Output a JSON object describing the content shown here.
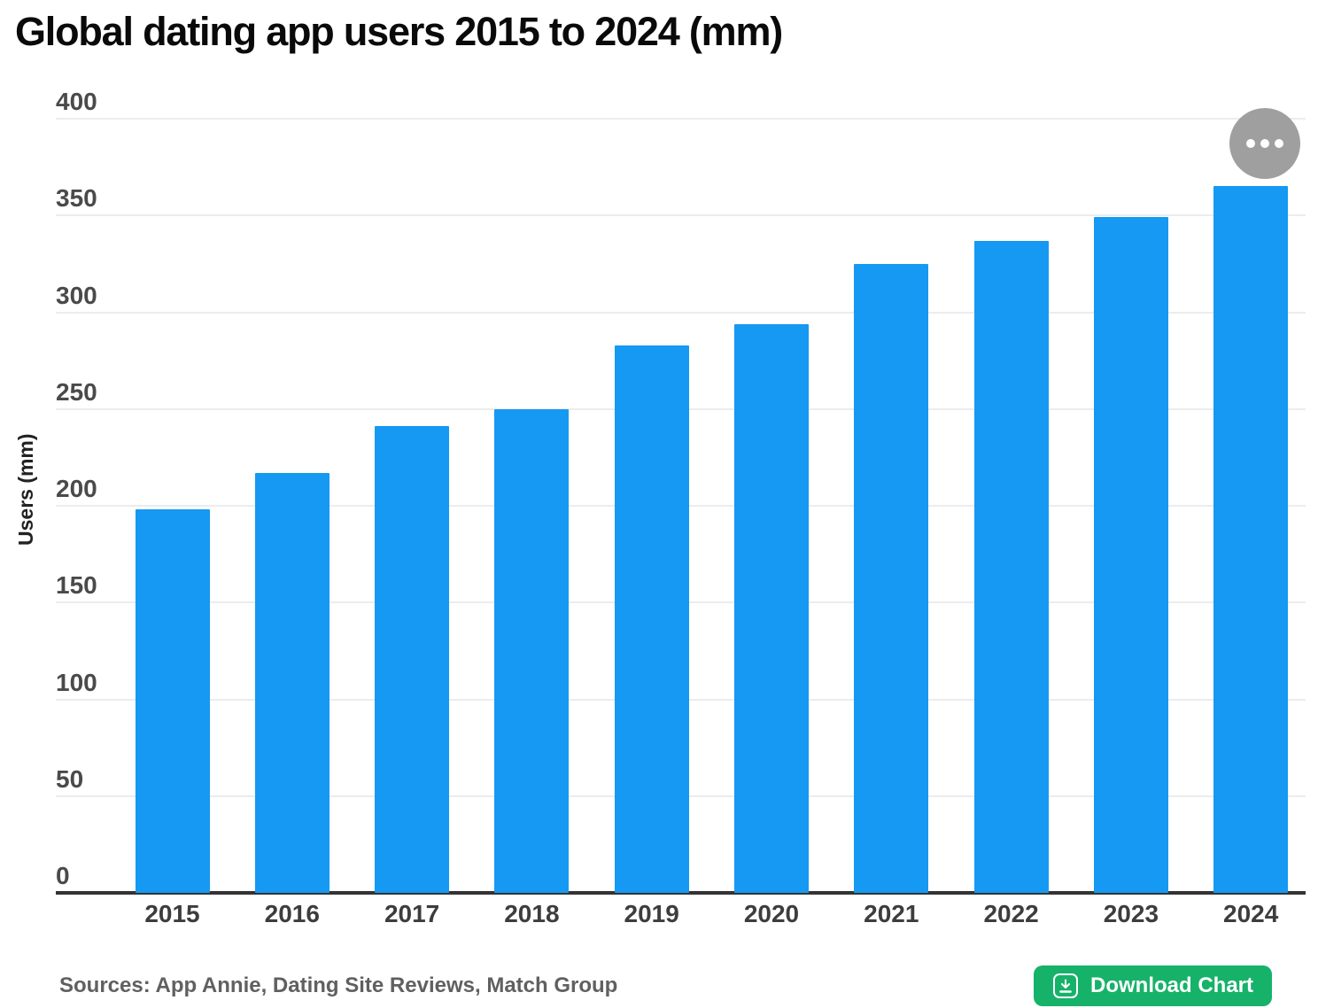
{
  "page": {
    "title": "Global dating app users 2015 to 2024 (mm)"
  },
  "chart_data": {
    "type": "bar",
    "title": "Global dating app users 2015 to 2024 (mm)",
    "categories": [
      "2015",
      "2016",
      "2017",
      "2018",
      "2019",
      "2020",
      "2021",
      "2022",
      "2023",
      "2024"
    ],
    "values": [
      198,
      217,
      241,
      250,
      283,
      294,
      325,
      337,
      349,
      365
    ],
    "xlabel": "",
    "ylabel": "Users (mm)",
    "ylim": [
      0,
      400
    ],
    "yticks": [
      0,
      50,
      100,
      150,
      200,
      250,
      300,
      350,
      400
    ],
    "grid": true,
    "legend": false,
    "bar_color": "#1599f2"
  },
  "menu": {
    "ellipsis_icon": "ellipsis-menu"
  },
  "footer": {
    "sources": "Sources: App Annie, Dating Site Reviews, Match Group",
    "download_label": "Download Chart"
  },
  "colors": {
    "bar_blue": "#1599f2",
    "button_green": "#17b26a",
    "menu_gray": "#9f9f9f",
    "gridline": "#ececec",
    "axis": "#333333",
    "tick_text": "#4a4a4a",
    "sources_text": "#606060"
  }
}
